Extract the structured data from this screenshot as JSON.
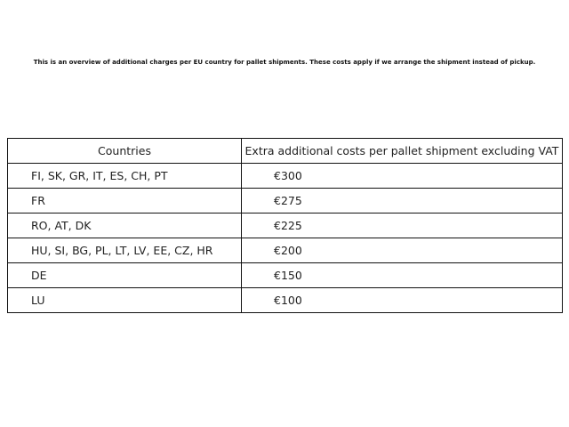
{
  "intro": "This is an overview of additional charges per EU country for pallet shipments. These costs apply if we arrange the shipment instead of pickup.",
  "table": {
    "headers": [
      "Countries",
      "Extra additional costs per pallet shipment excluding VAT"
    ],
    "rows": [
      [
        "FI, SK, GR, IT, ES, CH, PT",
        "€300"
      ],
      [
        "FR",
        "€275"
      ],
      [
        "RO, AT, DK",
        "€225"
      ],
      [
        "HU, SI, BG, PL, LT, LV, EE, CZ, HR",
        "€200"
      ],
      [
        "DE",
        "€150"
      ],
      [
        "LU",
        "€100"
      ]
    ]
  }
}
